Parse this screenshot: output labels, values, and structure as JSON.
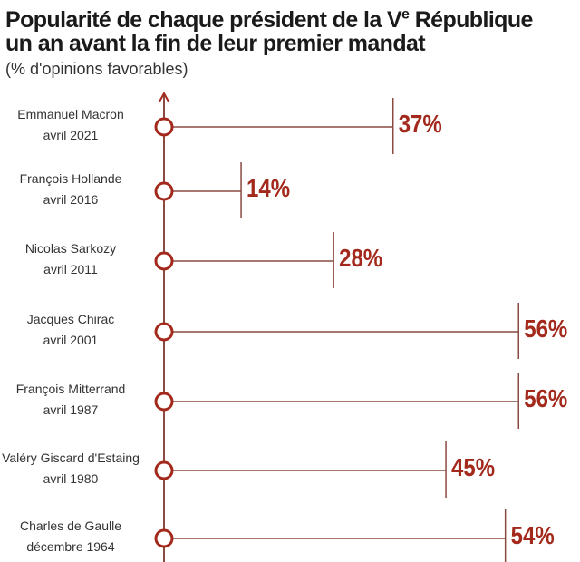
{
  "chart_data": {
    "type": "bar",
    "title_line1": "Popularité de chaque président de la Ve République",
    "title_line2": "un an avant la fin de leur premier mandat",
    "subtitle": "(% d'opinions favorables)",
    "xlabel": "",
    "ylabel": "",
    "unit": "%",
    "categories": [
      {
        "name": "Emmanuel Macron",
        "date": "avril 2021"
      },
      {
        "name": "François Hollande",
        "date": "avril 2016"
      },
      {
        "name": "Nicolas Sarkozy",
        "date": "avril 2011"
      },
      {
        "name": "Jacques Chirac",
        "date": "avril 2001"
      },
      {
        "name": "François Mitterrand",
        "date": "avril 1987"
      },
      {
        "name": "Valéry Giscard d'Estaing",
        "date": "avril 1980"
      },
      {
        "name": "Charles de Gaulle",
        "date": "décembre 1964"
      }
    ],
    "values": [
      37,
      14,
      28,
      56,
      56,
      45,
      54
    ],
    "labels": [
      "37%",
      "14%",
      "28%",
      "56%",
      "56%",
      "45%",
      "54%"
    ]
  },
  "colors": {
    "accent": "#a3291c",
    "line": "#8a4a40",
    "text": "#333333"
  }
}
